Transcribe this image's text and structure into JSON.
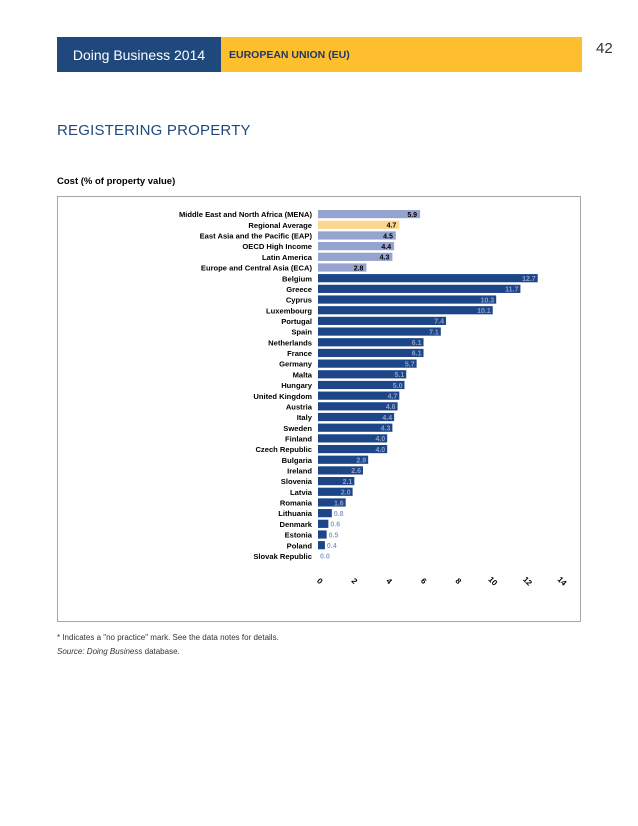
{
  "header": {
    "left_title": "Doing Business 2014",
    "right_title": "EUROPEAN UNION (EU)",
    "page_number": "42"
  },
  "section_title": "REGISTERING PROPERTY",
  "chart_data": {
    "type": "bar",
    "orientation": "horizontal",
    "title": "Cost (% of property value)",
    "xlim": [
      0,
      14
    ],
    "xticks": [
      "0",
      "2",
      "4",
      "6",
      "8",
      "10",
      "12",
      "14"
    ],
    "grid": false,
    "colors": {
      "comparator": "#95a3cf",
      "regional_average": "#fbd78e",
      "economy": "#1d4689",
      "economy_value_label": "#8ea0c9",
      "comparator_value_label": "#000000"
    },
    "categories": [
      "Middle East and North Africa (MENA)",
      "Regional Average",
      "East Asia and the Pacific (EAP)",
      "OECD High Income",
      "Latin America",
      "Europe and Central Asia (ECA)",
      "Belgium",
      "Greece",
      "Cyprus",
      "Luxembourg",
      "Portugal",
      "Spain",
      "Netherlands",
      "France",
      "Germany",
      "Malta",
      "Hungary",
      "United Kingdom",
      "Austria",
      "Italy",
      "Sweden",
      "Finland",
      "Czech Republic",
      "Bulgaria",
      "Ireland",
      "Slovenia",
      "Latvia",
      "Romania",
      "Lithuania",
      "Denmark",
      "Estonia",
      "Poland",
      "Slovak Republic"
    ],
    "values": [
      5.9,
      4.7,
      4.5,
      4.4,
      4.3,
      2.8,
      12.7,
      11.7,
      10.3,
      10.1,
      7.4,
      7.1,
      6.1,
      6.1,
      5.7,
      5.1,
      5.0,
      4.7,
      4.6,
      4.4,
      4.3,
      4.0,
      4.0,
      2.9,
      2.6,
      2.1,
      2.0,
      1.6,
      0.8,
      0.6,
      0.5,
      0.4,
      0.0
    ],
    "value_labels": [
      "5.9",
      "4.7",
      "4.5",
      "4.4",
      "4.3",
      "2.8",
      "12.7",
      "11.7",
      "10.3",
      "10.1",
      "7.4",
      "7.1",
      "6.1",
      "6.1",
      "5.7",
      "5.1",
      "5.0",
      "4.7",
      "4.6",
      "4.4",
      "4.3",
      "4.0",
      "4.0",
      "2.9",
      "2.6",
      "2.1",
      "2.0",
      "1.6",
      "0.8",
      "0.6",
      "0.5",
      "0.4",
      "0.0"
    ],
    "bar_kind": [
      "comparator",
      "regional_average",
      "comparator",
      "comparator",
      "comparator",
      "comparator",
      "economy",
      "economy",
      "economy",
      "economy",
      "economy",
      "economy",
      "economy",
      "economy",
      "economy",
      "economy",
      "economy",
      "economy",
      "economy",
      "economy",
      "economy",
      "economy",
      "economy",
      "economy",
      "economy",
      "economy",
      "economy",
      "economy",
      "economy",
      "economy",
      "economy",
      "economy",
      "economy"
    ]
  },
  "footnote": "* Indicates a \"no practice\" mark. See the data notes for details.",
  "source": {
    "prefix": "Source: Doing Business",
    "suffix": " database."
  }
}
